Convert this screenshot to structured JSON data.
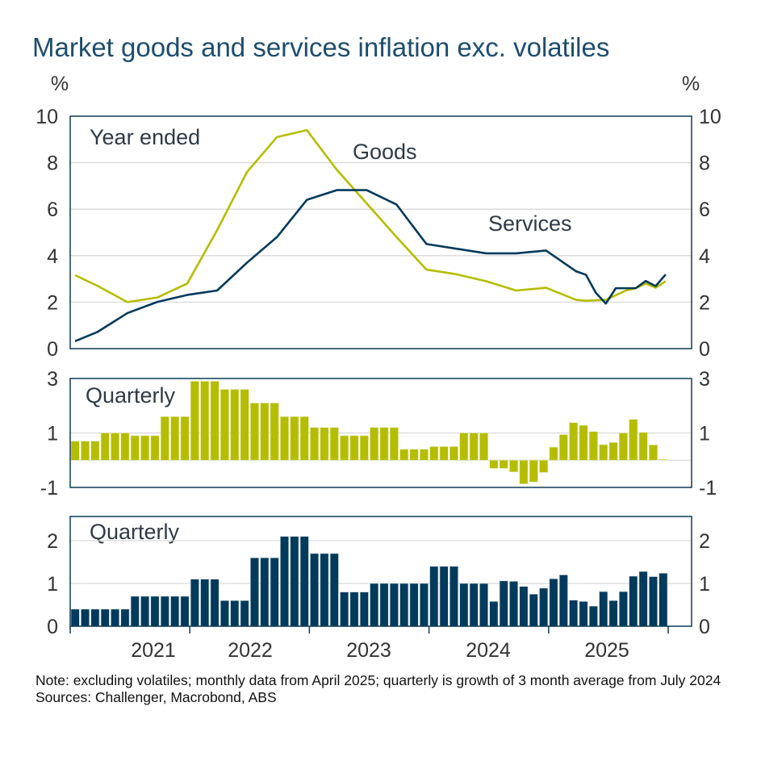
{
  "title": "Market goods and services inflation exc. volatiles",
  "unit_left": "%",
  "unit_right": "%",
  "colors": {
    "goods": "#b5bd00",
    "services": "#023a5c",
    "frame": "#0e3a59",
    "grid": "#d9d9d9",
    "title": "#1d4d6e"
  },
  "note": "Note: excluding volatiles; monthly data from April 2025; quarterly is growth of 3 month average from July 2024",
  "sources": "Sources: Challenger, Macrobond, ABS",
  "x_axis": {
    "labels": [
      "2021",
      "2022",
      "2023",
      "2024",
      "2025"
    ]
  },
  "chart_data": [
    {
      "type": "line",
      "panel_label": "Year ended",
      "ylim": [
        0,
        10
      ],
      "yticks": [
        "0",
        "2",
        "4",
        "6",
        "8",
        "10"
      ],
      "grid": true,
      "series": [
        {
          "name": "Goods",
          "x": [
            "2021-01",
            "2021-03",
            "2021-06",
            "2021-09",
            "2021-12",
            "2022-03",
            "2022-06",
            "2022-09",
            "2022-12",
            "2023-03",
            "2023-06",
            "2023-09",
            "2023-12",
            "2024-03",
            "2024-06",
            "2024-09",
            "2024-12",
            "2025-03",
            "2025-04",
            "2025-05",
            "2025-06",
            "2025-07",
            "2025-08",
            "2025-09",
            "2025-10",
            "2025-11",
            "2025-12"
          ],
          "values": [
            3.16,
            2.7,
            2.0,
            2.2,
            2.8,
            5.1,
            7.6,
            9.1,
            9.4,
            7.7,
            6.25,
            4.8,
            3.4,
            3.2,
            2.9,
            2.5,
            2.62,
            2.1,
            2.06,
            2.08,
            2.1,
            2.3,
            2.5,
            2.6,
            2.8,
            2.62,
            2.9
          ]
        },
        {
          "name": "Services",
          "x": [
            "2021-01",
            "2021-03",
            "2021-06",
            "2021-09",
            "2021-12",
            "2022-03",
            "2022-06",
            "2022-09",
            "2022-12",
            "2023-03",
            "2023-06",
            "2023-09",
            "2023-12",
            "2024-03",
            "2024-06",
            "2024-09",
            "2024-12",
            "2025-03",
            "2025-04",
            "2025-05",
            "2025-06",
            "2025-07",
            "2025-08",
            "2025-09",
            "2025-10",
            "2025-11",
            "2025-12"
          ],
          "values": [
            0.32,
            0.72,
            1.53,
            2.01,
            2.31,
            2.5,
            3.7,
            4.8,
            6.4,
            6.82,
            6.82,
            6.2,
            4.5,
            4.3,
            4.1,
            4.1,
            4.22,
            3.33,
            3.18,
            2.4,
            1.94,
            2.6,
            2.6,
            2.6,
            2.91,
            2.69,
            3.19
          ]
        }
      ]
    },
    {
      "type": "bar",
      "panel_label": "Quarterly",
      "series_ref": "Goods",
      "ylim": [
        -1,
        3
      ],
      "yticks": [
        "-1",
        "1",
        "3"
      ],
      "grid": true,
      "x_range": [
        "2021-01",
        "2025-12"
      ],
      "values": [
        0.7,
        0.7,
        0.7,
        1.0,
        1.0,
        1.0,
        0.9,
        0.9,
        0.9,
        1.6,
        1.6,
        1.6,
        2.9,
        2.9,
        2.9,
        2.6,
        2.6,
        2.6,
        2.1,
        2.1,
        2.1,
        1.6,
        1.6,
        1.6,
        1.2,
        1.2,
        1.2,
        0.9,
        0.9,
        0.9,
        1.2,
        1.2,
        1.2,
        0.4,
        0.4,
        0.4,
        0.5,
        0.5,
        0.5,
        1.0,
        1.0,
        1.0,
        -0.3,
        -0.3,
        -0.43,
        -0.87,
        -0.8,
        -0.45,
        0.48,
        0.94,
        1.38,
        1.28,
        1.05,
        0.57,
        0.65,
        1.0,
        1.5,
        1.02,
        0.56,
        0.03
      ]
    },
    {
      "type": "bar",
      "panel_label": "Quarterly",
      "series_ref": "Services",
      "ylim": [
        0,
        2.6
      ],
      "yticks": [
        "0",
        "1",
        "2"
      ],
      "grid": true,
      "x_range": [
        "2021-01",
        "2025-12"
      ],
      "values": [
        0.4,
        0.4,
        0.4,
        0.4,
        0.4,
        0.4,
        0.7,
        0.7,
        0.7,
        0.7,
        0.7,
        0.7,
        1.1,
        1.1,
        1.1,
        0.6,
        0.6,
        0.6,
        1.6,
        1.6,
        1.6,
        2.1,
        2.1,
        2.1,
        1.7,
        1.7,
        1.7,
        0.8,
        0.8,
        0.8,
        1.0,
        1.0,
        1.0,
        1.0,
        1.0,
        1.0,
        1.4,
        1.4,
        1.4,
        1.0,
        1.0,
        1.0,
        0.58,
        1.06,
        1.05,
        0.93,
        0.75,
        0.89,
        1.11,
        1.2,
        0.61,
        0.58,
        0.47,
        0.81,
        0.6,
        0.81,
        1.17,
        1.28,
        1.16,
        1.24
      ]
    }
  ]
}
